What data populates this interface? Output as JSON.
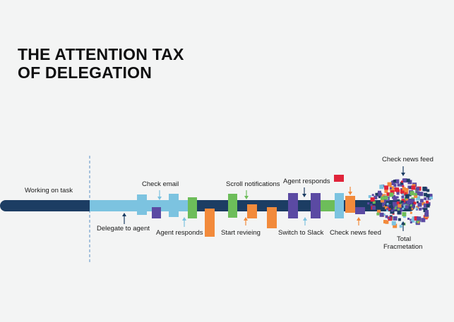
{
  "title": {
    "line1": "THE ATTENTION TAX",
    "line2": "OF DELEGATION"
  },
  "labels": {
    "working_on_task": "Working on task",
    "delegate_to_agent": "Delegate to agent",
    "check_email": "Check email",
    "agent_responds_1": "Agent responds",
    "scroll_notifications": "Scroll notifications",
    "start_revieing": "Start revieing",
    "agent_responds_2": "Agent responds",
    "switch_to_slack": "Switch to Slack",
    "check_news_feed_top": "Check news feed",
    "check_news_feed_bottom": "Check news feed",
    "total": "Total",
    "fragmentation": "Fracmetation"
  },
  "colors": {
    "background": "#f3f4f4",
    "timeline": "#1c3d63",
    "light_blue": "#7cc3e0",
    "purple": "#5b4aa3",
    "green": "#6dbd5a",
    "orange": "#f28a3b",
    "red": "#e0243a",
    "dashed_line": "#5a8fc6"
  }
}
